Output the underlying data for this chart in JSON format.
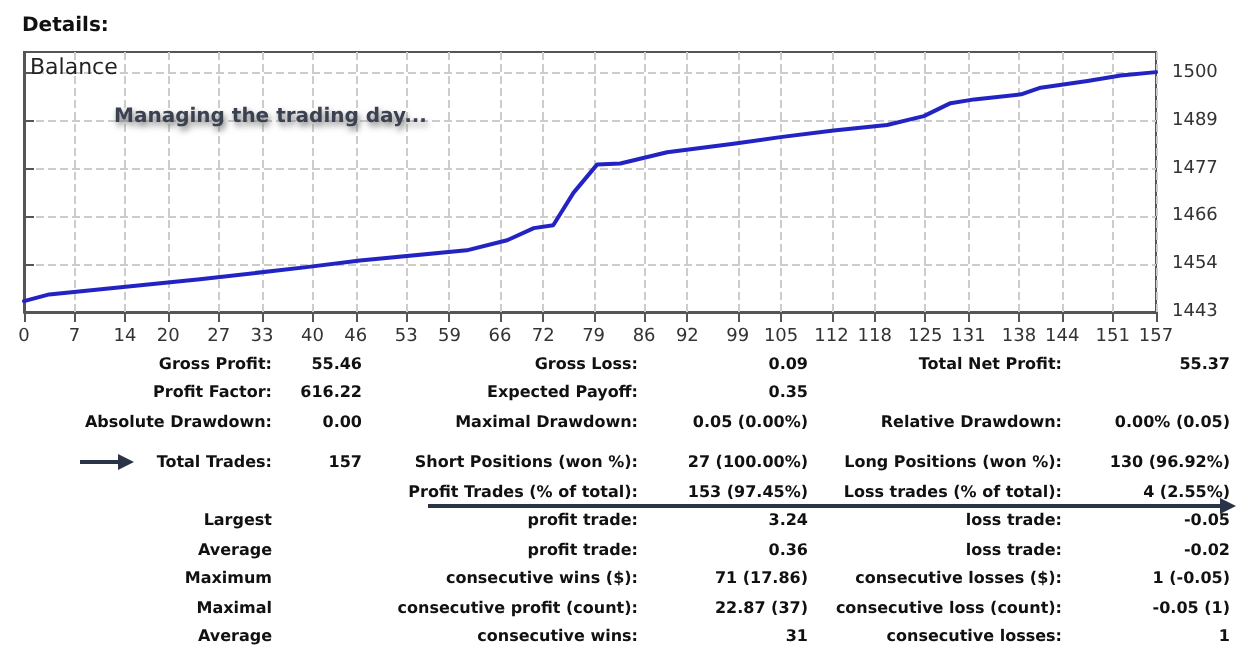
{
  "chart_data": {
    "type": "line",
    "title": "Details:",
    "x": [
      0,
      3.5,
      24.4,
      39.2,
      46.6,
      61.4,
      67,
      70.7,
      73.4,
      76.2,
      79.5,
      82.7,
      89.2,
      98.4,
      104.9,
      112.3,
      119.7,
      124.8,
      128.5,
      131.8,
      138.3,
      141,
      147.5,
      152.1,
      157
    ],
    "series": [
      {
        "color": "#2323c4",
        "values": [
          1445.6,
          1447.2,
          1450.8,
          1453.7,
          1455.3,
          1457.7,
          1460.1,
          1463,
          1463.7,
          1471.4,
          1478.2,
          1478.4,
          1481.1,
          1483.1,
          1484.7,
          1486.3,
          1487.6,
          1489.7,
          1492.8,
          1493.7,
          1494.9,
          1496.5,
          1498.1,
          1499.4,
          1500.2
        ]
      }
    ],
    "xlim": [
      0,
      157
    ],
    "xticks": [
      0,
      7,
      14,
      20,
      27,
      33,
      40,
      46,
      53,
      59,
      66,
      72,
      79,
      86,
      92,
      99,
      105,
      112,
      118,
      125,
      131,
      138,
      144,
      151,
      157
    ],
    "ylim": [
      1443,
      1505
    ],
    "yticks": [
      1443,
      {
        "value": 1454.4,
        "label": "1454"
      },
      {
        "value": 1465.8,
        "label": "1466"
      },
      {
        "value": 1477.2,
        "label": "1477"
      },
      {
        "value": 1488.6,
        "label": "1489"
      },
      1500
    ],
    "grid": true,
    "marker": "none",
    "line_style": "solid",
    "annotations": [
      "Balance",
      "Managing the trading day...",
      "Gross Profit:",
      "55.46",
      "Gross Loss:",
      "0.09",
      "Total Net Profit:",
      "55.37",
      "Profit Factor:",
      "616.22",
      "Expected Payoff:",
      "0.35",
      "Absolute Drawdown:",
      "0.00",
      "Maximal Drawdown:",
      "0.05 (0.00%)",
      "Relative Drawdown:",
      "0.00% (0.05)",
      "Total Trades:",
      "157",
      "Short Positions (won %):",
      "27 (100.00%)",
      "Long Positions (won %):",
      "130 (96.92%)",
      "Profit Trades (% of total):",
      "153 (97.45%)",
      "Loss trades (% of total):",
      "4 (2.55%)",
      "Largest",
      "profit trade:",
      "3.24",
      "loss trade:",
      "-0.05",
      "Average",
      "profit trade:",
      "0.36",
      "loss trade:",
      "-0.02",
      "Maximum",
      "consecutive wins ($):",
      "71 (17.86)",
      "consecutive losses ($):",
      "1 (-0.05)",
      "Maximal",
      "consecutive profit (count):",
      "22.87 (37)",
      "consecutive loss (count):",
      "-0.05 (1)",
      "Average",
      "consecutive wins:",
      "31",
      "consecutive losses:",
      "1"
    ]
  }
}
